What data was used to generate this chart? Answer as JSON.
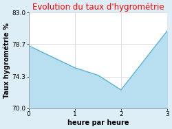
{
  "title": "Evolution du taux d'hygrométrie",
  "title_color": "#ff0000",
  "xlabel": "heure par heure",
  "ylabel": "Taux hygrométrie %",
  "x": [
    0,
    0.5,
    1,
    1.5,
    2,
    2.5,
    3
  ],
  "y": [
    78.5,
    77.0,
    75.5,
    74.5,
    72.5,
    76.5,
    80.5
  ],
  "ylim": [
    70.0,
    83.0
  ],
  "xlim": [
    0,
    3
  ],
  "yticks": [
    70.0,
    74.3,
    78.7,
    83.0
  ],
  "xticks": [
    0,
    1,
    2,
    3
  ],
  "fill_color": "#b8dff0",
  "fill_alpha": 1.0,
  "line_color": "#5ab4d6",
  "line_width": 1.0,
  "plot_bg_color": "#ffffff",
  "outer_bg_color": "#ddeef6",
  "grid_color": "#dddddd",
  "title_fontsize": 8.5,
  "axis_label_fontsize": 7,
  "tick_fontsize": 6.5
}
